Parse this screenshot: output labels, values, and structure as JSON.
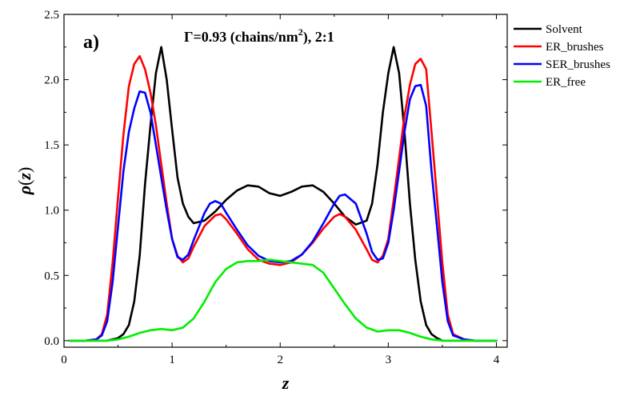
{
  "chart_data": {
    "type": "line",
    "panel_label": "a)",
    "annotation": {
      "prefix": "Γ=0.93 (chains/nm",
      "superscript": "2",
      "suffix": "), 2:1"
    },
    "xlabel": "z",
    "ylabel": {
      "rho": "ρ",
      "open": "(",
      "var": "z",
      "close": ")"
    },
    "xlim": [
      0,
      4.1
    ],
    "ylim": [
      -0.05,
      2.5
    ],
    "xticks": [
      0,
      1,
      2,
      3,
      4
    ],
    "yticks": [
      0.0,
      0.5,
      1.0,
      1.5,
      2.0,
      2.5
    ],
    "xtick_labels": [
      "0",
      "1",
      "2",
      "3",
      "4"
    ],
    "ytick_labels": [
      "0.0",
      "0.5",
      "1.0",
      "1.5",
      "2.0",
      "2.5"
    ],
    "grid": false,
    "legend_position": "top-right-outside",
    "series": [
      {
        "name": "Solvent",
        "color": "#000000",
        "x": [
          0.05,
          0.2,
          0.3,
          0.4,
          0.5,
          0.55,
          0.6,
          0.65,
          0.7,
          0.75,
          0.8,
          0.85,
          0.9,
          0.95,
          1.0,
          1.05,
          1.1,
          1.15,
          1.2,
          1.3,
          1.4,
          1.5,
          1.6,
          1.7,
          1.8,
          1.9,
          2.0,
          2.1,
          2.2,
          2.3,
          2.4,
          2.5,
          2.6,
          2.7,
          2.8,
          2.85,
          2.9,
          2.95,
          3.0,
          3.05,
          3.1,
          3.15,
          3.2,
          3.25,
          3.3,
          3.35,
          3.4,
          3.45,
          3.5,
          3.6,
          3.7,
          3.8,
          4.0
        ],
        "y": [
          0.0,
          0.0,
          0.0,
          0.0,
          0.02,
          0.05,
          0.12,
          0.3,
          0.65,
          1.2,
          1.65,
          2.05,
          2.25,
          2.0,
          1.62,
          1.25,
          1.05,
          0.95,
          0.9,
          0.92,
          0.99,
          1.08,
          1.15,
          1.19,
          1.18,
          1.13,
          1.11,
          1.14,
          1.18,
          1.19,
          1.14,
          1.05,
          0.95,
          0.89,
          0.92,
          1.05,
          1.35,
          1.75,
          2.05,
          2.25,
          2.05,
          1.6,
          1.05,
          0.62,
          0.3,
          0.12,
          0.05,
          0.02,
          0.0,
          0.0,
          0.0,
          0.0,
          0.0
        ]
      },
      {
        "name": "ER_brushes",
        "color": "#ff0000",
        "x": [
          0.05,
          0.2,
          0.3,
          0.35,
          0.4,
          0.45,
          0.5,
          0.55,
          0.6,
          0.65,
          0.7,
          0.75,
          0.8,
          0.85,
          0.9,
          0.95,
          1.0,
          1.05,
          1.1,
          1.15,
          1.2,
          1.3,
          1.4,
          1.45,
          1.5,
          1.6,
          1.7,
          1.8,
          1.9,
          2.0,
          2.1,
          2.2,
          2.3,
          2.4,
          2.5,
          2.55,
          2.6,
          2.7,
          2.8,
          2.85,
          2.9,
          2.95,
          3.0,
          3.05,
          3.1,
          3.15,
          3.2,
          3.25,
          3.3,
          3.35,
          3.4,
          3.45,
          3.5,
          3.55,
          3.6,
          3.7,
          3.8,
          4.0
        ],
        "y": [
          0.0,
          0.0,
          0.01,
          0.05,
          0.2,
          0.6,
          1.1,
          1.58,
          1.95,
          2.12,
          2.18,
          2.08,
          1.9,
          1.65,
          1.35,
          1.05,
          0.78,
          0.65,
          0.6,
          0.63,
          0.72,
          0.88,
          0.96,
          0.97,
          0.93,
          0.82,
          0.7,
          0.62,
          0.59,
          0.58,
          0.6,
          0.66,
          0.75,
          0.86,
          0.95,
          0.97,
          0.95,
          0.85,
          0.7,
          0.62,
          0.6,
          0.65,
          0.78,
          1.08,
          1.4,
          1.72,
          1.96,
          2.12,
          2.16,
          2.08,
          1.6,
          1.1,
          0.6,
          0.2,
          0.05,
          0.01,
          0.0,
          0.0
        ]
      },
      {
        "name": "SER_brushes",
        "color": "#0000ff",
        "x": [
          0.05,
          0.2,
          0.3,
          0.35,
          0.4,
          0.45,
          0.5,
          0.55,
          0.6,
          0.65,
          0.7,
          0.75,
          0.8,
          0.85,
          0.9,
          0.95,
          1.0,
          1.05,
          1.1,
          1.15,
          1.2,
          1.3,
          1.35,
          1.4,
          1.45,
          1.5,
          1.6,
          1.7,
          1.8,
          1.9,
          2.0,
          2.1,
          2.2,
          2.3,
          2.4,
          2.5,
          2.55,
          2.6,
          2.7,
          2.8,
          2.85,
          2.9,
          2.95,
          3.0,
          3.05,
          3.1,
          3.15,
          3.2,
          3.25,
          3.3,
          3.35,
          3.4,
          3.45,
          3.5,
          3.55,
          3.6,
          3.7,
          3.8,
          4.0
        ],
        "y": [
          0.0,
          0.0,
          0.01,
          0.04,
          0.15,
          0.45,
          0.88,
          1.3,
          1.6,
          1.78,
          1.91,
          1.9,
          1.75,
          1.5,
          1.25,
          1.0,
          0.78,
          0.64,
          0.62,
          0.66,
          0.77,
          0.98,
          1.05,
          1.07,
          1.05,
          0.98,
          0.85,
          0.73,
          0.65,
          0.61,
          0.6,
          0.61,
          0.66,
          0.76,
          0.9,
          1.05,
          1.11,
          1.12,
          1.05,
          0.82,
          0.68,
          0.62,
          0.63,
          0.75,
          1.0,
          1.3,
          1.6,
          1.85,
          1.95,
          1.96,
          1.8,
          1.3,
          0.88,
          0.45,
          0.15,
          0.04,
          0.01,
          0.0,
          0.0
        ]
      },
      {
        "name": "ER_free",
        "color": "#00ee00",
        "x": [
          0.05,
          0.2,
          0.4,
          0.5,
          0.6,
          0.7,
          0.8,
          0.9,
          1.0,
          1.1,
          1.2,
          1.3,
          1.4,
          1.5,
          1.6,
          1.7,
          1.8,
          1.9,
          2.0,
          2.1,
          2.2,
          2.3,
          2.4,
          2.5,
          2.6,
          2.7,
          2.8,
          2.9,
          3.0,
          3.1,
          3.2,
          3.3,
          3.4,
          3.5,
          3.6,
          3.7,
          3.8,
          4.0
        ],
        "y": [
          0.0,
          0.0,
          0.0,
          0.01,
          0.03,
          0.06,
          0.08,
          0.09,
          0.08,
          0.1,
          0.17,
          0.3,
          0.45,
          0.55,
          0.6,
          0.61,
          0.61,
          0.62,
          0.61,
          0.6,
          0.59,
          0.58,
          0.52,
          0.4,
          0.28,
          0.17,
          0.1,
          0.07,
          0.08,
          0.08,
          0.06,
          0.03,
          0.01,
          0.0,
          0.0,
          0.0,
          0.0,
          0.0
        ]
      }
    ]
  }
}
